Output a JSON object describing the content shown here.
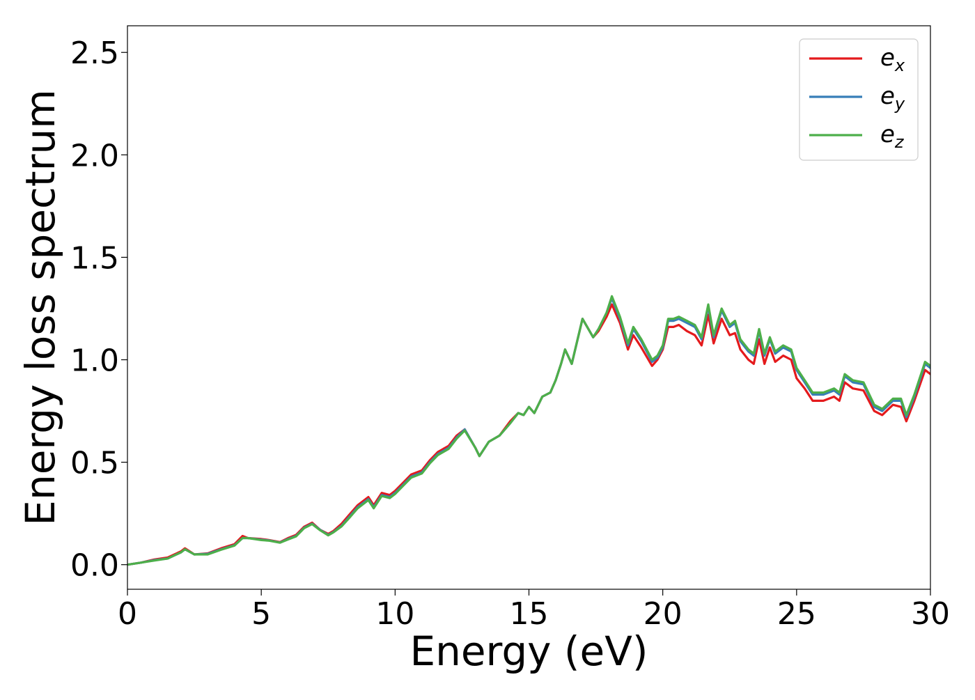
{
  "chart_data": {
    "type": "line",
    "title": "",
    "xlabel": "Energy (eV)",
    "ylabel": "Energy loss spectrum",
    "xlim": [
      0,
      30
    ],
    "ylim": [
      -0.12,
      2.63
    ],
    "xticks": [
      0,
      5,
      10,
      15,
      20,
      25,
      30
    ],
    "xtick_labels": [
      "0",
      "5",
      "10",
      "15",
      "20",
      "25",
      "30"
    ],
    "yticks": [
      0.0,
      0.5,
      1.0,
      1.5,
      2.0,
      2.5
    ],
    "ytick_labels": [
      "0.0",
      "0.5",
      "1.0",
      "1.5",
      "2.0",
      "2.5"
    ],
    "grid": false,
    "legend_position": "top-right",
    "x": [
      0,
      0.5,
      1,
      1.5,
      2,
      2.15,
      2.5,
      3,
      3.5,
      4,
      4.3,
      4.5,
      5,
      5.3,
      5.7,
      6,
      6.3,
      6.6,
      6.9,
      7.2,
      7.5,
      7.7,
      8,
      8.3,
      8.6,
      9,
      9.2,
      9.5,
      9.8,
      10,
      10.3,
      10.6,
      11,
      11.3,
      11.6,
      12,
      12.3,
      12.6,
      13,
      13.15,
      13.5,
      13.9,
      14.3,
      14.6,
      14.8,
      15,
      15.2,
      15.5,
      15.8,
      16,
      16.2,
      16.35,
      16.6,
      17,
      17.4,
      17.6,
      17.9,
      18.1,
      18.4,
      18.7,
      18.9,
      19.2,
      19.6,
      19.8,
      20,
      20.2,
      20.4,
      20.6,
      20.9,
      21.2,
      21.45,
      21.7,
      21.9,
      22.2,
      22.5,
      22.7,
      22.9,
      23.2,
      23.4,
      23.6,
      23.8,
      24,
      24.2,
      24.5,
      24.8,
      25,
      25.3,
      25.6,
      26,
      26.4,
      26.6,
      26.8,
      27.1,
      27.5,
      27.9,
      28.2,
      28.6,
      28.9,
      29.1,
      29.4,
      29.8,
      30
    ],
    "series": [
      {
        "name": "e",
        "name_subscript": "x",
        "color": "#e41a1c",
        "values": [
          0,
          0.01,
          0.025,
          0.035,
          0.065,
          0.08,
          0.05,
          0.055,
          0.08,
          0.1,
          0.14,
          0.13,
          0.125,
          0.12,
          0.11,
          0.13,
          0.145,
          0.185,
          0.205,
          0.17,
          0.15,
          0.165,
          0.2,
          0.245,
          0.29,
          0.33,
          0.29,
          0.35,
          0.34,
          0.36,
          0.4,
          0.44,
          0.46,
          0.51,
          0.55,
          0.58,
          0.63,
          0.66,
          0.57,
          0.53,
          0.6,
          0.63,
          0.7,
          0.74,
          0.73,
          0.77,
          0.74,
          0.82,
          0.84,
          0.9,
          0.98,
          1.05,
          0.98,
          1.2,
          1.11,
          1.14,
          1.21,
          1.27,
          1.18,
          1.05,
          1.12,
          1.06,
          0.97,
          1.0,
          1.05,
          1.16,
          1.16,
          1.17,
          1.14,
          1.12,
          1.07,
          1.22,
          1.08,
          1.2,
          1.12,
          1.13,
          1.05,
          1.0,
          0.98,
          1.1,
          0.98,
          1.06,
          0.99,
          1.02,
          1.0,
          0.91,
          0.86,
          0.8,
          0.8,
          0.82,
          0.8,
          0.89,
          0.86,
          0.85,
          0.75,
          0.73,
          0.78,
          0.77,
          0.7,
          0.8,
          0.95,
          0.93
        ]
      },
      {
        "name": "e",
        "name_subscript": "y",
        "color": "#377eb8",
        "values": [
          0,
          0.01,
          0.022,
          0.03,
          0.06,
          0.075,
          0.05,
          0.053,
          0.075,
          0.095,
          0.13,
          0.13,
          0.122,
          0.118,
          0.108,
          0.125,
          0.14,
          0.18,
          0.2,
          0.17,
          0.145,
          0.16,
          0.19,
          0.235,
          0.28,
          0.32,
          0.28,
          0.34,
          0.33,
          0.35,
          0.39,
          0.43,
          0.45,
          0.5,
          0.54,
          0.57,
          0.62,
          0.66,
          0.57,
          0.53,
          0.6,
          0.63,
          0.69,
          0.74,
          0.73,
          0.77,
          0.74,
          0.82,
          0.84,
          0.9,
          0.98,
          1.05,
          0.98,
          1.2,
          1.11,
          1.15,
          1.23,
          1.3,
          1.2,
          1.07,
          1.15,
          1.09,
          0.99,
          1.01,
          1.06,
          1.19,
          1.19,
          1.2,
          1.18,
          1.16,
          1.1,
          1.26,
          1.11,
          1.24,
          1.16,
          1.18,
          1.09,
          1.04,
          1.02,
          1.14,
          1.02,
          1.1,
          1.03,
          1.06,
          1.04,
          0.95,
          0.89,
          0.83,
          0.83,
          0.85,
          0.83,
          0.92,
          0.89,
          0.88,
          0.77,
          0.75,
          0.8,
          0.8,
          0.72,
          0.82,
          0.98,
          0.96
        ]
      },
      {
        "name": "e",
        "name_subscript": "z",
        "color": "#4daf4a",
        "values": [
          0,
          0.01,
          0.02,
          0.03,
          0.06,
          0.075,
          0.05,
          0.05,
          0.073,
          0.093,
          0.13,
          0.13,
          0.12,
          0.117,
          0.107,
          0.123,
          0.138,
          0.178,
          0.198,
          0.168,
          0.143,
          0.158,
          0.187,
          0.23,
          0.275,
          0.315,
          0.275,
          0.335,
          0.325,
          0.345,
          0.385,
          0.425,
          0.445,
          0.495,
          0.535,
          0.565,
          0.615,
          0.655,
          0.57,
          0.53,
          0.6,
          0.63,
          0.69,
          0.74,
          0.73,
          0.77,
          0.74,
          0.82,
          0.84,
          0.9,
          0.98,
          1.05,
          0.98,
          1.2,
          1.11,
          1.15,
          1.23,
          1.31,
          1.21,
          1.08,
          1.16,
          1.1,
          1.0,
          1.02,
          1.07,
          1.2,
          1.2,
          1.21,
          1.19,
          1.17,
          1.11,
          1.27,
          1.12,
          1.25,
          1.17,
          1.19,
          1.1,
          1.05,
          1.03,
          1.15,
          1.03,
          1.11,
          1.04,
          1.07,
          1.05,
          0.96,
          0.9,
          0.84,
          0.84,
          0.86,
          0.84,
          0.93,
          0.9,
          0.89,
          0.78,
          0.76,
          0.81,
          0.81,
          0.73,
          0.83,
          0.99,
          0.97
        ]
      }
    ]
  }
}
